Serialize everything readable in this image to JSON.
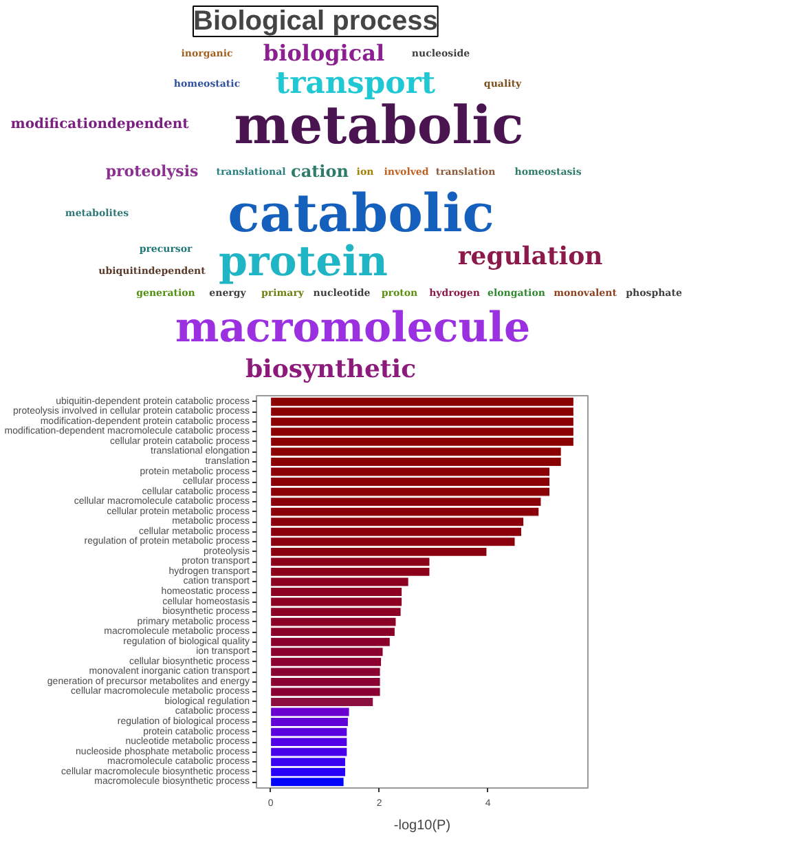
{
  "chart_data": [
    {
      "type": "other",
      "title": "Biological process",
      "annotations": [
        "metabolic",
        "catabolic",
        "macromolecule",
        "protein",
        "transport",
        "regulation",
        "biosynthetic",
        "biological",
        "modificationdependent",
        "proteolysis",
        "cation",
        "ubiquitindependent",
        "translation",
        "translational",
        "homeostatic",
        "homeostasis",
        "quality",
        "nucleoside",
        "inorganic",
        "involved",
        "ion",
        "precursor",
        "metabolites",
        "proton",
        "hydrogen",
        "phosphate",
        "monovalent",
        "elongation",
        "generation",
        "energy",
        "primary",
        "nucleotide"
      ]
    },
    {
      "type": "bar",
      "orientation": "horizontal",
      "xlabel": "-log10(P)",
      "categories": [
        "ubiquitin-dependent protein catabolic process",
        "proteolysis involved in cellular protein catabolic process",
        "modification-dependent protein catabolic process",
        "modification-dependent macromolecule catabolic process",
        "cellular protein catabolic process",
        "translational elongation",
        "translation",
        "protein metabolic process",
        "cellular process",
        "cellular catabolic process",
        "cellular macromolecule catabolic process",
        "cellular protein metabolic process",
        "metabolic process",
        "cellular metabolic process",
        "regulation of protein metabolic process",
        "proteolysis",
        "proton transport",
        "hydrogen transport",
        "cation transport",
        "homeostatic process",
        "cellular homeostasis",
        "biosynthetic process",
        "primary metabolic process",
        "macromolecule metabolic process",
        "regulation of biological quality",
        "ion transport",
        "cellular biosynthetic process",
        "monovalent inorganic cation transport",
        "generation of precursor metabolites and energy",
        "cellular macromolecule metabolic process",
        "biological regulation",
        "catabolic process",
        "regulation of biological process",
        "protein catabolic process",
        "nucleotide metabolic process",
        "nucleoside phosphate metabolic process",
        "macromolecule catabolic process",
        "cellular macromolecule biosynthetic process",
        "macromolecule biosynthetic process"
      ],
      "values": [
        5.58,
        5.58,
        5.58,
        5.58,
        5.58,
        5.35,
        5.35,
        5.14,
        5.14,
        5.14,
        4.98,
        4.94,
        4.66,
        4.62,
        4.5,
        3.98,
        2.93,
        2.93,
        2.54,
        2.42,
        2.42,
        2.4,
        2.31,
        2.29,
        2.2,
        2.07,
        2.04,
        2.02,
        2.02,
        2.02,
        1.89,
        1.45,
        1.43,
        1.41,
        1.41,
        1.41,
        1.38,
        1.38,
        1.35
      ],
      "colors": [
        "#8b0000",
        "#8b0000",
        "#8b0000",
        "#8b0000",
        "#8b0000",
        "#8b0000",
        "#8b0000",
        "#8b0005",
        "#8b0005",
        "#8b0005",
        "#8b0008",
        "#8b0008",
        "#8b000a",
        "#8b000a",
        "#8b000c",
        "#8b0010",
        "#8b0018",
        "#8b0018",
        "#8b0020",
        "#8b0022",
        "#8b0022",
        "#8b0024",
        "#8b0026",
        "#8b0028",
        "#8b002a",
        "#8b002e",
        "#8b0030",
        "#8b0032",
        "#8b0032",
        "#8b0032",
        "#8b1040",
        "#6a00d0",
        "#6200d8",
        "#5a00e0",
        "#5200e6",
        "#4800ea",
        "#3a00f0",
        "#2800f8",
        "#0000ff"
      ],
      "xlim": [
        -0.26,
        5.84
      ],
      "xticks": [
        0,
        2,
        4
      ],
      "grid": false
    }
  ]
}
